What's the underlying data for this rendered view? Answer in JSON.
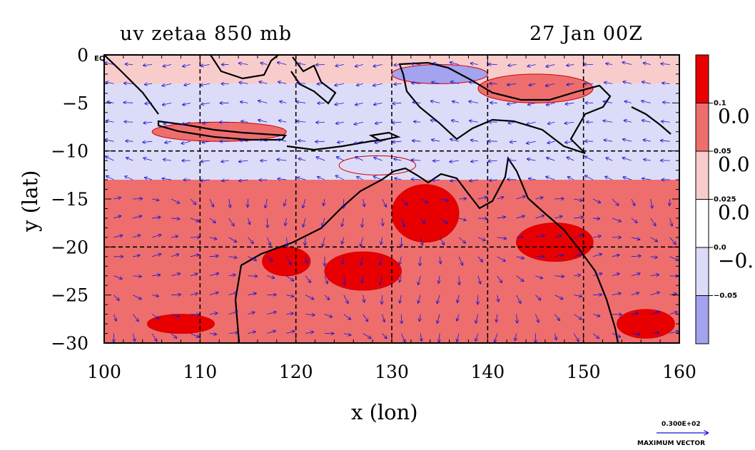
{
  "title_left": "uv zetaa 850 mb",
  "title_right": "27 Jan 00Z",
  "xlabel": "x (lon)",
  "ylabel": "y (lat)",
  "x_ticks": [
    "100",
    "110",
    "120",
    "130",
    "140",
    "150",
    "160"
  ],
  "y_ticks": [
    "0",
    "−5",
    "−10",
    "−15",
    "−20",
    "−25",
    "−30"
  ],
  "eq_label": "EQ",
  "colorbar": {
    "small_labels": [
      "0.1",
      "0.05",
      "0.025",
      "0.0",
      "−0.05"
    ],
    "big_labels": [
      "0.0",
      "0.0",
      "0.0",
      "−0."
    ],
    "colors": [
      "#e80000",
      "#ee6e6e",
      "#f9cccc",
      "#ffffff",
      "#dcdcf8",
      "#a3a3ef"
    ]
  },
  "vector_label": "0.300E+02",
  "vector_caption": "MAXIMUM VECTOR",
  "palette": {
    "red_strong": "#e80000",
    "red_mid": "#ee6e6e",
    "red_light": "#f9cccc",
    "blue_light": "#dcdcf8",
    "blue_mid": "#a3a3ef",
    "vector_blue": "#1515d0"
  },
  "chart_data": {
    "type": "heatmap",
    "title": "uv zetaa 850 mb",
    "time": "27 Jan 00Z",
    "xlabel": "x (lon)",
    "ylabel": "y (lat)",
    "xlim": [
      100,
      160
    ],
    "ylim": [
      -30,
      0
    ],
    "x_gridlines": [
      110,
      120,
      130,
      140,
      150
    ],
    "y_gridlines": [
      -10,
      -20
    ],
    "contour_levels": [
      -0.05,
      0.0,
      0.025,
      0.05,
      0.1
    ],
    "max_vector": "0.300E+02",
    "bands": [
      {
        "lat": [
          0,
          -3
        ],
        "value": 0.03
      },
      {
        "lat": [
          -3,
          -10
        ],
        "value": -0.03
      },
      {
        "lat": [
          -10,
          -13
        ],
        "value": -0.01
      },
      {
        "lat": [
          -13,
          -30
        ],
        "value": 0.06
      }
    ],
    "features": [
      {
        "lon": 133.5,
        "lat": -16.5,
        "rx": 3.5,
        "ry": 3.0,
        "value": 0.12
      },
      {
        "lon": 127.0,
        "lat": -22.5,
        "rx": 4.0,
        "ry": 2.0,
        "value": 0.12
      },
      {
        "lon": 119.0,
        "lat": -21.5,
        "rx": 2.5,
        "ry": 1.5,
        "value": 0.12
      },
      {
        "lon": 108.0,
        "lat": -28.0,
        "rx": 3.5,
        "ry": 1.0,
        "value": 0.12
      },
      {
        "lon": 147.0,
        "lat": -19.5,
        "rx": 4.0,
        "ry": 2.0,
        "value": 0.12
      },
      {
        "lon": 156.5,
        "lat": -28.0,
        "rx": 3.0,
        "ry": 1.5,
        "value": 0.12
      },
      {
        "lon": 145.0,
        "lat": -3.5,
        "rx": 6.0,
        "ry": 1.5,
        "value": 0.07
      },
      {
        "lon": 112.0,
        "lat": -8.0,
        "rx": 7.0,
        "ry": 1.0,
        "value": 0.07
      },
      {
        "lon": 128.5,
        "lat": -11.5,
        "rx": 4.0,
        "ry": 1.0,
        "value": -0.02
      },
      {
        "lon": 135.0,
        "lat": -2.0,
        "rx": 5.0,
        "ry": 1.0,
        "value": -0.06
      }
    ]
  }
}
